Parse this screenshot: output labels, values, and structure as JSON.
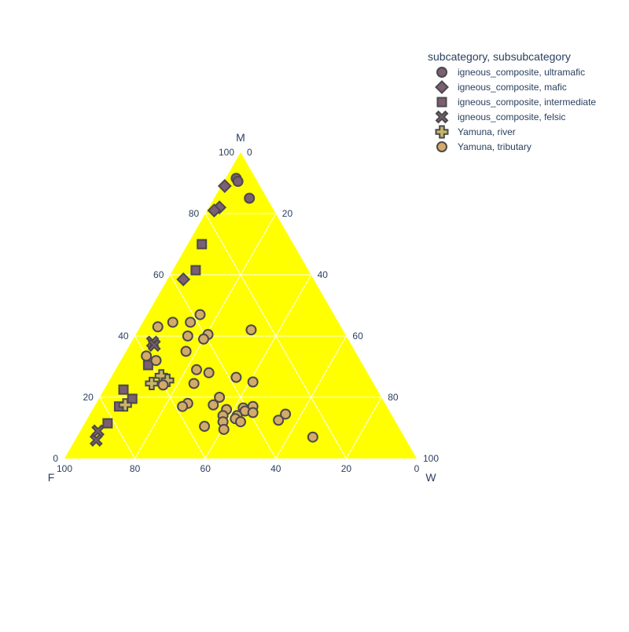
{
  "chart_data": {
    "type": "scatter",
    "ternary": true,
    "axes": {
      "a": "M",
      "b": "F",
      "c": "W"
    },
    "axis_range": [
      0,
      100
    ],
    "tick_values": [
      20,
      40,
      60,
      80
    ],
    "grid": true,
    "background_color": "#ffff00",
    "grid_color": "#ffffff",
    "legend": {
      "title": "subcategory, subsubcategory",
      "position": "top-right"
    },
    "series": [
      {
        "name": "igneous_composite, ultramafic",
        "marker": "circle",
        "color": "#7d5e73",
        "points": [
          {
            "M": 91.5,
            "F": 5.5,
            "W": 3.0
          },
          {
            "M": 90.5,
            "F": 5.5,
            "W": 4.0
          },
          {
            "M": 85.0,
            "F": 5.0,
            "W": 10.0
          }
        ]
      },
      {
        "name": "igneous_composite, mafic",
        "marker": "diamond",
        "color": "#7d5e73",
        "points": [
          {
            "M": 89.0,
            "F": 10.0,
            "W": 1.0
          },
          {
            "M": 82.0,
            "F": 15.0,
            "W": 3.0
          },
          {
            "M": 81.0,
            "F": 17.0,
            "W": 2.0
          },
          {
            "M": 58.5,
            "F": 37.0,
            "W": 4.5
          }
        ]
      },
      {
        "name": "igneous_composite, intermediate",
        "marker": "square",
        "color": "#7d5e73",
        "points": [
          {
            "M": 70.0,
            "F": 26.0,
            "W": 4.0
          },
          {
            "M": 61.5,
            "F": 32.0,
            "W": 6.5
          },
          {
            "M": 30.5,
            "F": 61.0,
            "W": 8.5
          },
          {
            "M": 22.5,
            "F": 72.0,
            "W": 5.5
          },
          {
            "M": 19.5,
            "F": 71.0,
            "W": 9.5
          },
          {
            "M": 17.0,
            "F": 76.0,
            "W": 7.0
          },
          {
            "M": 11.5,
            "F": 82.0,
            "W": 6.5
          }
        ]
      },
      {
        "name": "igneous_composite, felsic",
        "marker": "x",
        "color": "#7d5e73",
        "points": [
          {
            "M": 38.0,
            "F": 56.0,
            "W": 6.0
          },
          {
            "M": 37.0,
            "F": 56.0,
            "W": 7.0
          },
          {
            "M": 9.0,
            "F": 86.0,
            "W": 5.0
          },
          {
            "M": 6.0,
            "F": 88.0,
            "W": 6.0
          }
        ]
      },
      {
        "name": "Yamuna, river",
        "marker": "cross",
        "color": "#c9b46a",
        "points": [
          {
            "M": 27.0,
            "F": 59.0,
            "W": 14.0
          },
          {
            "M": 25.5,
            "F": 58.0,
            "W": 16.5
          },
          {
            "M": 24.5,
            "F": 63.0,
            "W": 12.5
          },
          {
            "M": 17.5,
            "F": 74.0,
            "W": 8.5
          }
        ]
      },
      {
        "name": "Yamuna, tributary",
        "marker": "circle",
        "color": "#d4aa6a",
        "points": [
          {
            "M": 47.0,
            "F": 38.0,
            "W": 15.0
          },
          {
            "M": 44.5,
            "F": 42.0,
            "W": 13.5
          },
          {
            "M": 44.5,
            "F": 47.0,
            "W": 8.5
          },
          {
            "M": 43.0,
            "F": 52.0,
            "W": 5.0
          },
          {
            "M": 42.0,
            "F": 26.0,
            "W": 32.0
          },
          {
            "M": 40.5,
            "F": 39.0,
            "W": 20.5
          },
          {
            "M": 40.0,
            "F": 45.0,
            "W": 15.0
          },
          {
            "M": 39.0,
            "F": 41.0,
            "W": 20.0
          },
          {
            "M": 35.0,
            "F": 48.0,
            "W": 17.0
          },
          {
            "M": 33.5,
            "F": 60.0,
            "W": 6.5
          },
          {
            "M": 32.0,
            "F": 58.0,
            "W": 10.0
          },
          {
            "M": 29.0,
            "F": 48.0,
            "W": 23.0
          },
          {
            "M": 28.0,
            "F": 45.0,
            "W": 27.0
          },
          {
            "M": 26.5,
            "F": 38.0,
            "W": 35.5
          },
          {
            "M": 25.0,
            "F": 34.0,
            "W": 41.0
          },
          {
            "M": 24.5,
            "F": 51.0,
            "W": 24.5
          },
          {
            "M": 24.0,
            "F": 60.0,
            "W": 16.0
          },
          {
            "M": 20.0,
            "F": 46.0,
            "W": 34.0
          },
          {
            "M": 18.0,
            "F": 56.0,
            "W": 26.0
          },
          {
            "M": 17.5,
            "F": 49.0,
            "W": 33.5
          },
          {
            "M": 17.0,
            "F": 58.0,
            "W": 25.0
          },
          {
            "M": 17.0,
            "F": 38.0,
            "W": 45.0
          },
          {
            "M": 16.5,
            "F": 41.0,
            "W": 42.5
          },
          {
            "M": 16.0,
            "F": 46.0,
            "W": 38.0
          },
          {
            "M": 15.5,
            "F": 41.0,
            "W": 43.5
          },
          {
            "M": 15.0,
            "F": 39.0,
            "W": 46.0
          },
          {
            "M": 14.5,
            "F": 30.0,
            "W": 55.5
          },
          {
            "M": 14.0,
            "F": 48.0,
            "W": 38.0
          },
          {
            "M": 14.0,
            "F": 44.0,
            "W": 42.0
          },
          {
            "M": 13.0,
            "F": 45.0,
            "W": 42.0
          },
          {
            "M": 12.5,
            "F": 33.0,
            "W": 54.5
          },
          {
            "M": 12.0,
            "F": 49.0,
            "W": 39.0
          },
          {
            "M": 12.0,
            "F": 44.0,
            "W": 44.0
          },
          {
            "M": 10.5,
            "F": 55.0,
            "W": 34.5
          },
          {
            "M": 9.5,
            "F": 50.0,
            "W": 40.5
          },
          {
            "M": 7.0,
            "F": 26.0,
            "W": 67.0
          }
        ]
      }
    ]
  }
}
